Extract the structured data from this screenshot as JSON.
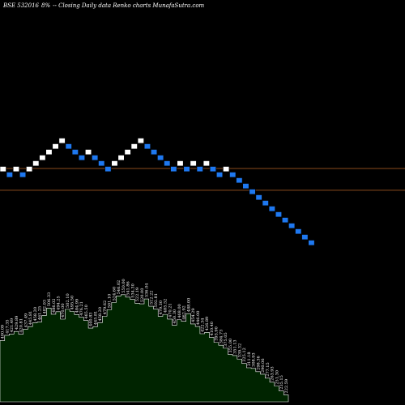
{
  "caption": {
    "symbol": "BSE 532016",
    "change": "8%",
    "rest": "-- Closing Daily data  Renko  charts MunafaSutra.com"
  },
  "colors": {
    "background": "#000000",
    "up_brick": "#ffffff",
    "down_brick": "#1e78f0",
    "brick_border": "#000000",
    "reference_line": "#8a4a1c",
    "volume_fill": "#002400",
    "volume_stroke": "#ffffff",
    "text": "#ffffff"
  },
  "chart_data": {
    "type": "renko",
    "bricks": [
      {
        "d": "up",
        "level": 0
      },
      {
        "d": "down",
        "level": -1
      },
      {
        "d": "up",
        "level": 0
      },
      {
        "d": "down",
        "level": -1
      },
      {
        "d": "up",
        "level": 0
      },
      {
        "d": "up",
        "level": 1
      },
      {
        "d": "up",
        "level": 2
      },
      {
        "d": "up",
        "level": 3
      },
      {
        "d": "up",
        "level": 4
      },
      {
        "d": "up",
        "level": 5
      },
      {
        "d": "down",
        "level": 4
      },
      {
        "d": "down",
        "level": 3
      },
      {
        "d": "down",
        "level": 2
      },
      {
        "d": "up",
        "level": 3
      },
      {
        "d": "down",
        "level": 2
      },
      {
        "d": "down",
        "level": 1
      },
      {
        "d": "down",
        "level": 0
      },
      {
        "d": "up",
        "level": 1
      },
      {
        "d": "up",
        "level": 2
      },
      {
        "d": "up",
        "level": 3
      },
      {
        "d": "up",
        "level": 4
      },
      {
        "d": "up",
        "level": 5
      },
      {
        "d": "down",
        "level": 4
      },
      {
        "d": "down",
        "level": 3
      },
      {
        "d": "down",
        "level": 2
      },
      {
        "d": "down",
        "level": 1
      },
      {
        "d": "down",
        "level": 0
      },
      {
        "d": "up",
        "level": 1
      },
      {
        "d": "down",
        "level": 0
      },
      {
        "d": "up",
        "level": 1
      },
      {
        "d": "down",
        "level": 0
      },
      {
        "d": "up",
        "level": 1
      },
      {
        "d": "down",
        "level": 0
      },
      {
        "d": "down",
        "level": -1
      },
      {
        "d": "up",
        "level": 0
      },
      {
        "d": "down",
        "level": -1
      },
      {
        "d": "down",
        "level": -2
      },
      {
        "d": "down",
        "level": -3
      },
      {
        "d": "down",
        "level": -4
      },
      {
        "d": "down",
        "level": -5
      },
      {
        "d": "down",
        "level": -6
      },
      {
        "d": "down",
        "level": -7
      },
      {
        "d": "down",
        "level": -8
      },
      {
        "d": "down",
        "level": -9
      },
      {
        "d": "down",
        "level": -10
      },
      {
        "d": "down",
        "level": -11
      },
      {
        "d": "down",
        "level": -12
      },
      {
        "d": "down",
        "level": -13
      }
    ],
    "reference_levels": [
      -0.35,
      -4.2
    ],
    "value_labels": [
      "400.09",
      "417.35",
      "421.49",
      "429.89",
      "420.81",
      "437.49",
      "445.81",
      "458.20",
      "461.25",
      "482.03",
      "506.33",
      "486.02",
      "494.25",
      "470.00",
      "502.10",
      "495.50",
      "484.99",
      "476.21",
      "465.50",
      "440.83",
      "445.81",
      "458.20",
      "479.62",
      "501.10",
      "524.60",
      "546.02",
      "550.00",
      "541.86",
      "534.30",
      "522.19",
      "520.00",
      "536.04",
      "512.22",
      "502.81",
      "479.30",
      "485.52",
      "470.21",
      "450.30",
      "468.00",
      "462.92",
      "488.00",
      "454.29",
      "446.00",
      "422.34",
      "426.89",
      "410.40",
      "393.90",
      "384.73",
      "375.05",
      "355.00",
      "351.13",
      "339.32",
      "325.12",
      "311.18",
      "308.93",
      "298.36",
      "290.06",
      "277.15",
      "263.93",
      "251.30",
      "235.15",
      "222.59"
    ]
  }
}
